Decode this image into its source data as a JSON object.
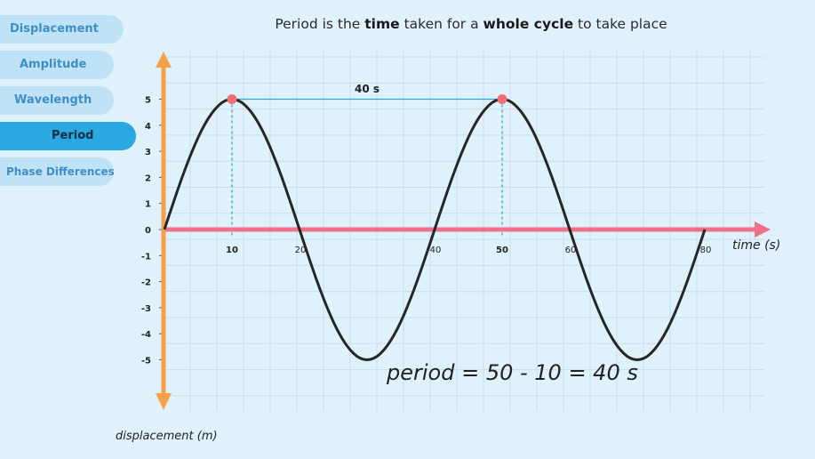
{
  "tabs": [
    {
      "label": "Displacement",
      "active": false
    },
    {
      "label": "Amplitude",
      "active": false
    },
    {
      "label": "Wavelength",
      "active": false
    },
    {
      "label": "Period",
      "active": true
    },
    {
      "label": "Phase Differences",
      "active": false
    }
  ],
  "title": {
    "pre": "Period is the ",
    "bold1": "time",
    "mid": " taken for a ",
    "bold2": "whole cycle",
    "post": " to take place"
  },
  "diagram": {
    "x_axis_label": "time (s)",
    "y_axis_label": "displacement (m)",
    "period_label": "40 s",
    "equation": "period = 50 - 10 = 40 s",
    "x_ticks": [
      {
        "value": 10,
        "label": "10",
        "bold": true
      },
      {
        "value": 20,
        "label": "20",
        "bold": false
      },
      {
        "value": 40,
        "label": "40",
        "bold": false
      },
      {
        "value": 50,
        "label": "50",
        "bold": true
      },
      {
        "value": 60,
        "label": "60",
        "bold": false
      },
      {
        "value": 80,
        "label": "80",
        "bold": false
      }
    ],
    "y_ticks": [
      "5",
      "4",
      "3",
      "2",
      "1",
      "0",
      "-1",
      "-2",
      "-3",
      "-4",
      "-5"
    ],
    "colors": {
      "x_axis": "#f0708a",
      "y_axis": "#f5a04a",
      "wave": "#262626",
      "marker": "#f0707a",
      "guide": "#2aa8e0",
      "grid": "#c9dde9"
    }
  },
  "chart_data": {
    "type": "line",
    "title": "",
    "xlabel": "time (s)",
    "ylabel": "displacement (m)",
    "xlim": [
      0,
      80
    ],
    "ylim": [
      -5,
      5
    ],
    "series": [
      {
        "function": "5*sin(2*pi*t/40)",
        "amplitude": 5,
        "period": 40
      }
    ],
    "peaks": [
      {
        "x": 10,
        "y": 5
      },
      {
        "x": 50,
        "y": 5
      }
    ],
    "zero_crossings": [
      0,
      20,
      40,
      60,
      80
    ]
  }
}
